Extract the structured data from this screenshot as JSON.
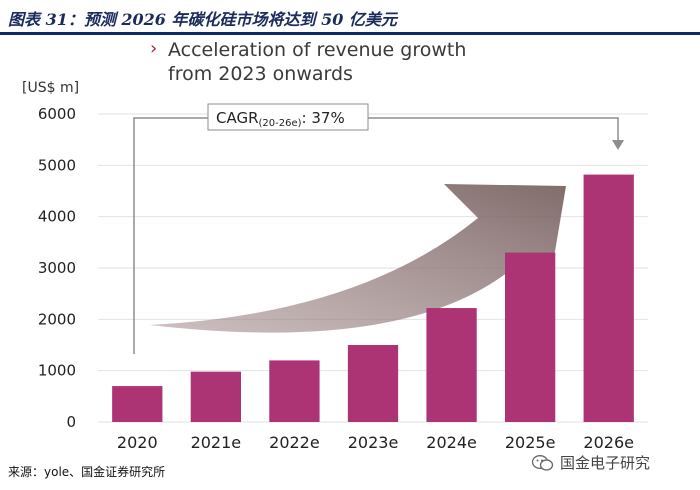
{
  "figure": {
    "title": "图表 31：预测 2026 年碳化硅市场将达到 50 亿美元",
    "source": "来源：yole、国金证券研究所",
    "watermark": "国金电子研究"
  },
  "chart_data": {
    "type": "bar",
    "bullet": "›",
    "title_line1": "Acceleration of revenue growth",
    "title_line2": "from 2023 onwards",
    "ylabel": "[US$ m]",
    "categories": [
      "2020",
      "2021e",
      "2022e",
      "2023e",
      "2024e",
      "2025e",
      "2026e"
    ],
    "values": [
      700,
      980,
      1200,
      1500,
      2220,
      3300,
      4820
    ],
    "ylim": [
      0,
      6000
    ],
    "yticks": [
      0,
      1000,
      2000,
      3000,
      4000,
      5000,
      6000
    ],
    "bar_color": "#ad3474",
    "arrow_color": "#8b7575",
    "cagr": {
      "main": "CAGR",
      "subscript": "(20-26e)",
      "value": ": 37%"
    }
  }
}
